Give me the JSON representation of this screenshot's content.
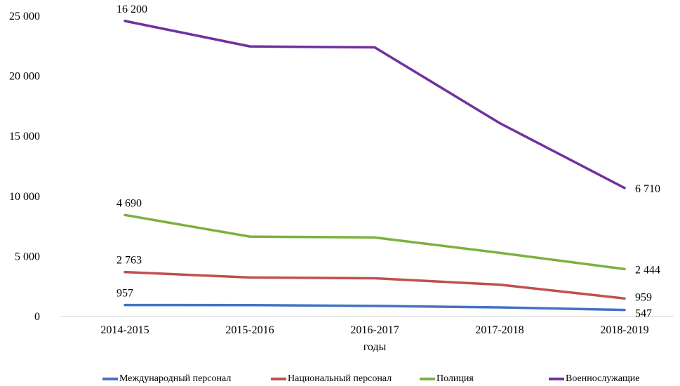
{
  "chart_data": {
    "type": "line",
    "title": "",
    "xlabel": "годы",
    "ylabel": "",
    "categories": [
      "2014-2015",
      "2015-2016",
      "2016-2017",
      "2017-2018",
      "2018-2019"
    ],
    "y_ticks": [
      "0",
      "5 000",
      "10 000",
      "15 000",
      "20 000",
      "25 000"
    ],
    "ylim": [
      0,
      25000
    ],
    "grid": false,
    "legend_position": "bottom",
    "series": [
      {
        "name": "Международный персонал",
        "color": "#4472C4",
        "values": [
          957,
          950,
          880,
          760,
          547
        ],
        "labels": [
          "957",
          "",
          "",
          "",
          "547"
        ]
      },
      {
        "name": "Национальный персонал",
        "color": "#C0504D",
        "values": [
          3700,
          3250,
          3180,
          2650,
          1500
        ],
        "labels": [
          "2 763",
          "",
          "",
          "",
          "959"
        ]
      },
      {
        "name": "Полиция",
        "color": "#7BB140",
        "values": [
          8450,
          6650,
          6580,
          5300,
          3950
        ],
        "labels": [
          "4 690",
          "",
          "",
          "",
          "2 444"
        ]
      },
      {
        "name": "Военнослужащие",
        "color": "#7030A0",
        "values": [
          24600,
          22480,
          22400,
          16100,
          10700
        ],
        "labels": [
          "16 200",
          "",
          "",
          "",
          "6 710"
        ]
      }
    ]
  }
}
